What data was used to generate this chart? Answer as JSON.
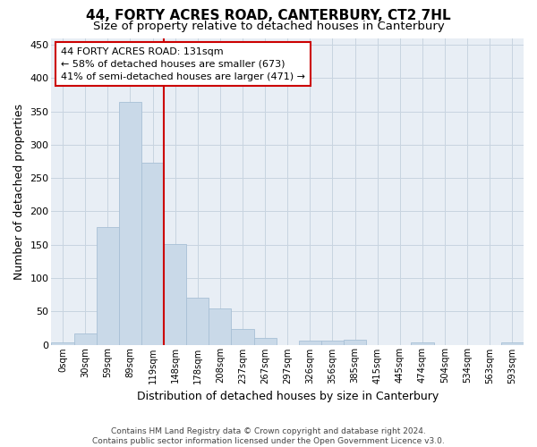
{
  "title": "44, FORTY ACRES ROAD, CANTERBURY, CT2 7HL",
  "subtitle": "Size of property relative to detached houses in Canterbury",
  "xlabel": "Distribution of detached houses by size in Canterbury",
  "ylabel": "Number of detached properties",
  "footer_line1": "Contains HM Land Registry data © Crown copyright and database right 2024.",
  "footer_line2": "Contains public sector information licensed under the Open Government Licence v3.0.",
  "annotation_title": "44 FORTY ACRES ROAD: 131sqm",
  "annotation_line2": "← 58% of detached houses are smaller (673)",
  "annotation_line3": "41% of semi-detached houses are larger (471) →",
  "bar_categories": [
    "0sqm",
    "30sqm",
    "59sqm",
    "89sqm",
    "119sqm",
    "148sqm",
    "178sqm",
    "208sqm",
    "237sqm",
    "267sqm",
    "297sqm",
    "326sqm",
    "356sqm",
    "385sqm",
    "415sqm",
    "445sqm",
    "474sqm",
    "504sqm",
    "534sqm",
    "563sqm",
    "593sqm"
  ],
  "bar_values": [
    4,
    17,
    177,
    364,
    273,
    151,
    70,
    54,
    23,
    10,
    0,
    6,
    6,
    7,
    0,
    0,
    3,
    0,
    0,
    0,
    3
  ],
  "bar_color": "#c9d9e8",
  "bar_edgecolor": "#a8c0d6",
  "vline_x": 4.5,
  "vline_color": "#cc0000",
  "annotation_box_edgecolor": "#cc0000",
  "annotation_box_facecolor": "white",
  "ylim": [
    0,
    460
  ],
  "yticks": [
    0,
    50,
    100,
    150,
    200,
    250,
    300,
    350,
    400,
    450
  ],
  "grid_color": "#c8d4e0",
  "background_color": "#e8eef5",
  "title_fontsize": 11,
  "subtitle_fontsize": 9.5,
  "ylabel_fontsize": 9,
  "xlabel_fontsize": 9,
  "annotation_fontsize": 8,
  "footer_fontsize": 6.5
}
